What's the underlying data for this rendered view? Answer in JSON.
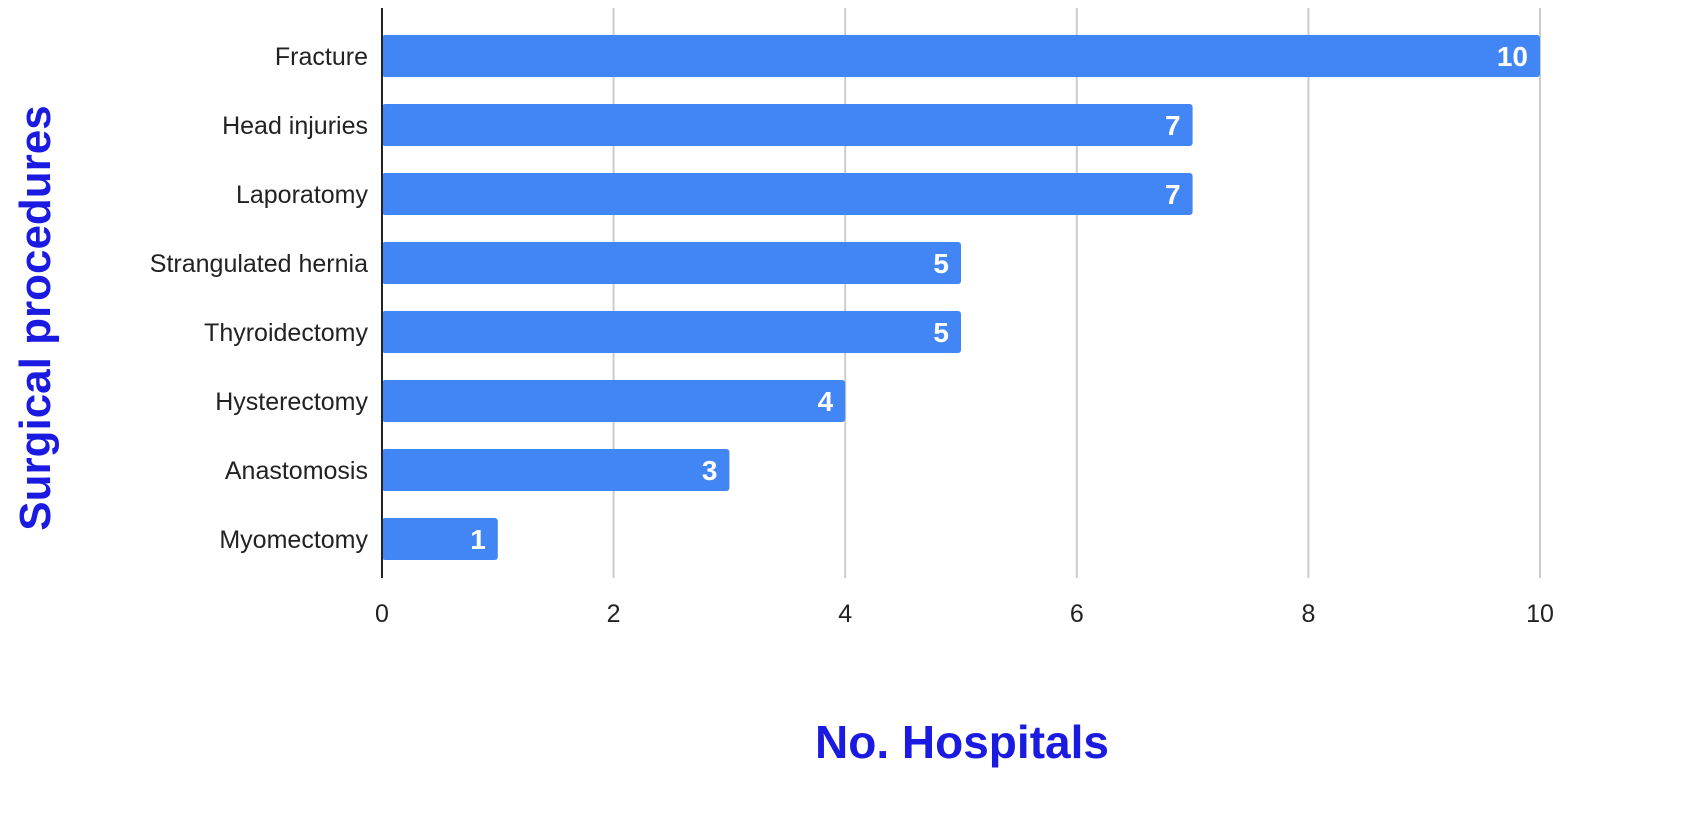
{
  "chart_data": {
    "type": "bar",
    "orientation": "horizontal",
    "categories": [
      "Fracture",
      "Head injuries",
      "Laporatomy",
      "Strangulated hernia",
      "Thyroidectomy",
      "Hysterectomy",
      "Anastomosis",
      "Myomectomy"
    ],
    "values": [
      10,
      7,
      7,
      5,
      5,
      4,
      3,
      1
    ],
    "data_labels": [
      "10",
      "7",
      "7",
      "5",
      "5",
      "4",
      "3",
      "1"
    ],
    "title": "",
    "xlabel": "No. Hospitals",
    "ylabel": "Surgical procedures",
    "xlim": [
      0,
      10
    ],
    "xticks": [
      0,
      2,
      4,
      6,
      8,
      10
    ],
    "xtick_labels": [
      "0",
      "2",
      "4",
      "6",
      "8",
      "10"
    ],
    "grid": "vertical",
    "legend": "none",
    "colors": {
      "bar": "#4285f4",
      "axis_title": "#1a1ae0",
      "grid": "#cccccc",
      "axis_line": "#222222",
      "text": "#222222",
      "data_label": "#ffffff"
    }
  }
}
